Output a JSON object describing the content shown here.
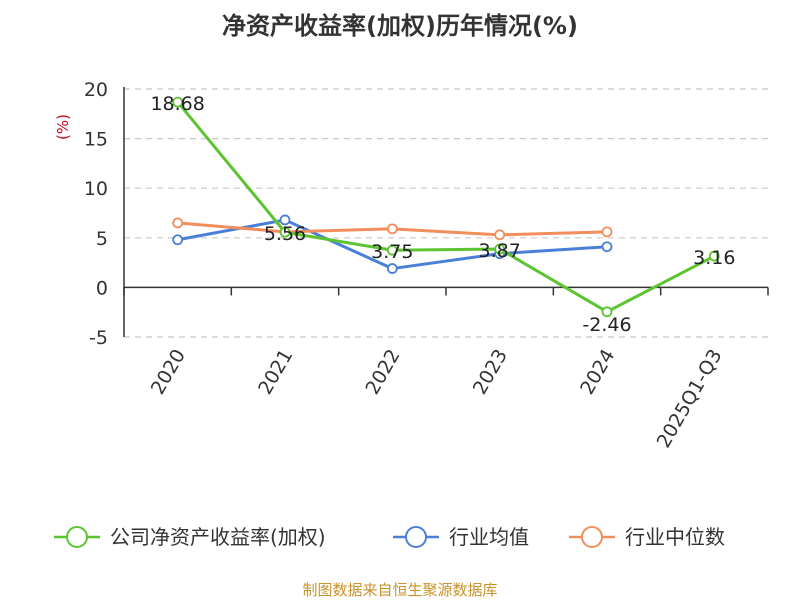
{
  "chart_data": {
    "type": "line",
    "title": "净资产收益率(加权)历年情况(%)",
    "ylabel": "(%)",
    "categories": [
      "2020",
      "2021",
      "2022",
      "2023",
      "2024",
      "2025Q1-Q3"
    ],
    "yticks": [
      "20",
      "15",
      "10",
      "5",
      "0",
      "-5"
    ],
    "ylim": [
      -5,
      20
    ],
    "grid": true,
    "legend_position": "bottom",
    "series": [
      {
        "name": "公司净资产收益率(加权)",
        "color": "#5cc430",
        "values": [
          18.68,
          5.56,
          3.75,
          3.87,
          -2.46,
          3.16
        ],
        "labels": [
          "18.68",
          "5.56",
          "3.75",
          "3.87",
          "-2.46",
          "3.16"
        ]
      },
      {
        "name": "行业均值",
        "color": "#4a7fd8",
        "values": [
          4.8,
          6.8,
          1.9,
          3.4,
          4.1,
          null
        ]
      },
      {
        "name": "行业中位数",
        "color": "#f28e5c",
        "values": [
          6.5,
          5.6,
          5.9,
          5.3,
          5.6,
          null
        ]
      }
    ],
    "source": "制图数据来自恒生聚源数据库"
  }
}
